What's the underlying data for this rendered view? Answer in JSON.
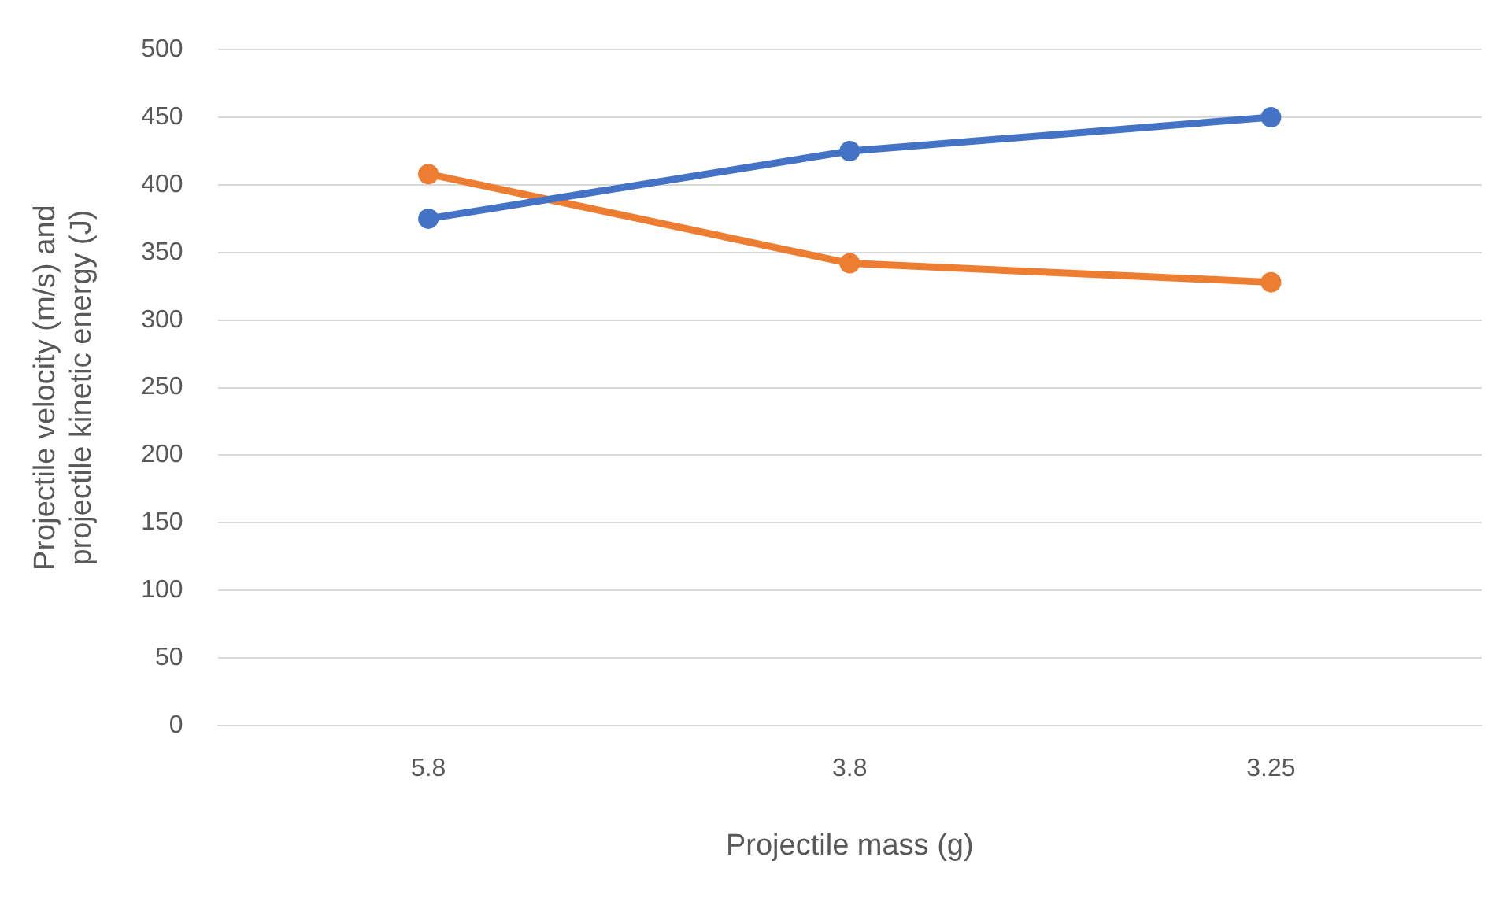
{
  "chart_data": {
    "type": "line",
    "xlabel": "Projectile mass (g)",
    "ylabel": "Projectile velocity (m/s) and projectile kinetic energy (J)",
    "categories": [
      "5.8",
      "3.8",
      "3.25"
    ],
    "series": [
      {
        "color": "#4472c4",
        "values": [
          375,
          425,
          450
        ]
      },
      {
        "color": "#ed7d31",
        "values": [
          408,
          342,
          328
        ]
      }
    ],
    "ylim": [
      0,
      500
    ],
    "yticks": [
      0,
      50,
      100,
      150,
      200,
      250,
      300,
      350,
      400,
      450,
      500
    ],
    "grid": "y",
    "legend": false,
    "marker": "circle",
    "line_style": "solid"
  }
}
